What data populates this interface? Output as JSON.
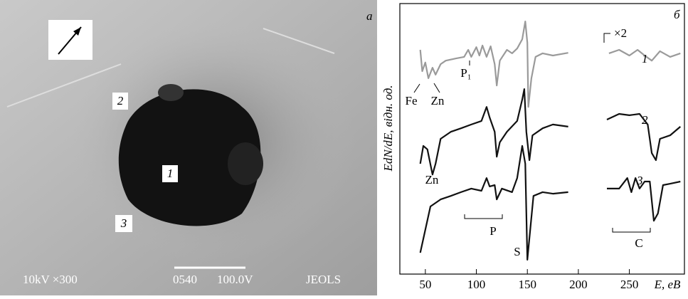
{
  "panel_a": {
    "label": "а",
    "regions": [
      "1",
      "2",
      "3"
    ],
    "footer": [
      "10kV ×300",
      "0540",
      "100.0V",
      "JEOLS"
    ]
  },
  "chart_data": {
    "type": "line",
    "panel_label": "б",
    "xlabel": "E, eB",
    "ylabel": "EdN/dE, відн. од.",
    "xlim": [
      25,
      304
    ],
    "xticks": [
      50,
      100,
      150,
      200,
      250
    ],
    "ylim": [
      0,
      100
    ],
    "annotations": [
      "Fe",
      "Zn",
      "P₁",
      "×2",
      "Zn",
      "P",
      "S",
      "C"
    ],
    "series": [
      {
        "name": "1",
        "color": "#9a9a9a",
        "x": [
          45,
          47,
          50,
          53,
          57,
          60,
          65,
          70,
          80,
          88,
          92,
          95,
          100,
          103,
          106,
          110,
          114,
          118,
          120,
          123,
          130,
          135,
          140,
          145,
          148,
          150,
          151,
          154,
          158,
          165,
          175,
          190,
          null,
          230,
          240,
          250,
          258,
          265,
          272,
          280,
          290,
          300
        ],
        "values": [
          82.9,
          75,
          78.2,
          72.4,
          76.3,
          73.7,
          77.6,
          78.9,
          79.7,
          80.3,
          82.9,
          80.3,
          83.9,
          80.8,
          84.5,
          80.3,
          84.2,
          77.6,
          69.7,
          78.9,
          82.9,
          81.6,
          83.4,
          86.8,
          93.4,
          85.5,
          61.8,
          72.4,
          80.3,
          81.6,
          80.8,
          81.8,
          null,
          81.6,
          82.9,
          80.8,
          82.9,
          80.8,
          78.9,
          82.4,
          80.3,
          81.6
        ]
      },
      {
        "name": "2",
        "color": "#111111",
        "x": [
          45,
          48,
          52,
          57,
          60,
          65,
          75,
          85,
          95,
          105,
          110,
          113,
          118,
          120,
          123,
          130,
          140,
          145,
          147,
          149,
          152,
          155,
          165,
          175,
          190,
          null,
          228,
          240,
          250,
          260,
          268,
          272,
          276,
          280,
          290,
          300
        ],
        "values": [
          40.8,
          47.4,
          46.1,
          36.8,
          40.8,
          50,
          52.6,
          53.9,
          55.3,
          56.6,
          61.8,
          57.9,
          52.6,
          43.4,
          48.7,
          52.6,
          56.6,
          64.5,
          68.4,
          52.6,
          42.1,
          51.3,
          53.9,
          55.3,
          54.5,
          null,
          57.1,
          59.2,
          58.7,
          59.2,
          55.3,
          44.7,
          42.1,
          50,
          51.3,
          54.5
        ]
      },
      {
        "name": "3",
        "color": "#111111",
        "x": [
          45,
          55,
          65,
          75,
          85,
          95,
          105,
          110,
          113,
          118,
          120,
          125,
          135,
          140,
          145,
          148,
          150,
          153,
          156,
          165,
          175,
          190,
          null,
          228,
          240,
          248,
          252,
          256,
          260,
          265,
          270,
          274,
          278,
          283,
          290,
          300
        ],
        "values": [
          7.9,
          25,
          27.6,
          28.9,
          30.3,
          31.6,
          30.8,
          35.5,
          32.4,
          32.9,
          27.6,
          31.6,
          30.3,
          35.5,
          47.4,
          40.8,
          5.3,
          17.1,
          28.9,
          30.3,
          29.7,
          30.3,
          null,
          31.6,
          31.6,
          35.5,
          30.3,
          35.5,
          31.6,
          34.2,
          34.2,
          19.7,
          22.4,
          32.9,
          33.4,
          34.2
        ]
      }
    ]
  }
}
